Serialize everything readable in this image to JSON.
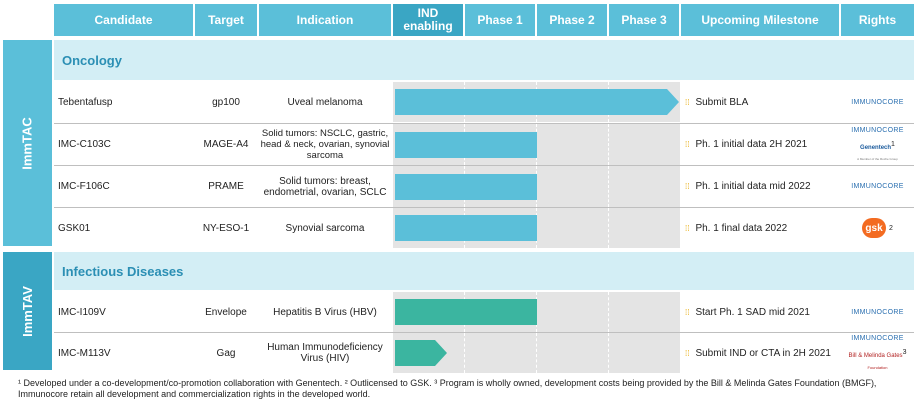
{
  "header": {
    "candidate": "Candidate",
    "target": "Target",
    "indication": "Indication",
    "ind": "IND enabling",
    "phase1": "Phase 1",
    "phase2": "Phase 2",
    "phase3": "Phase 3",
    "milestone": "Upcoming Milestone",
    "rights": "Rights"
  },
  "groups": {
    "immtac": "ImmTAC",
    "immtav": "ImmTAV"
  },
  "sections": {
    "oncology": "Oncology",
    "infectious": "Infectious Diseases"
  },
  "rows": [
    {
      "candidate": "Tebentafusp",
      "target": "gp100",
      "indication": "Uveal melanoma",
      "milestone": "Submit BLA",
      "rights": "IMMUNOCORE",
      "stage": "Phase 3"
    },
    {
      "candidate": "IMC-C103C",
      "target": "MAGE-A4",
      "indication": "Solid tumors: NSCLC, gastric, head & neck, ovarian, synovial sarcoma",
      "milestone": "Ph. 1 initial data 2H 2021",
      "rights": "IMMUNOCORE",
      "rights2": "Genentech",
      "rights2_sub": "A Member of the Roche Group",
      "note": "1",
      "stage": "Phase 1"
    },
    {
      "candidate": "IMC-F106C",
      "target": "PRAME",
      "indication": "Solid tumors: breast, endometrial, ovarian, SCLC",
      "milestone": "Ph. 1 initial data mid 2022",
      "rights": "IMMUNOCORE",
      "stage": "Phase 1"
    },
    {
      "candidate": "GSK01",
      "target": "NY-ESO-1",
      "indication": "Synovial sarcoma",
      "milestone": "Ph. 1 final data 2022",
      "rights": "gsk",
      "note": "2",
      "stage": "Phase 1"
    },
    {
      "candidate": "IMC-I109V",
      "target": "Envelope",
      "indication": "Hepatitis B Virus (HBV)",
      "milestone": "Start Ph. 1 SAD mid 2021",
      "rights": "IMMUNOCORE",
      "stage": "Phase 1"
    },
    {
      "candidate": "IMC-M113V",
      "target": "Gag",
      "indication": "Human Immunodeficiency Virus (HIV)",
      "milestone": "Submit IND or CTA in 2H 2021",
      "rights": "IMMUNOCORE",
      "rights2": "Bill & Melinda Gates",
      "rights2_sub": "Foundation",
      "note": "3",
      "stage": "IND enabling"
    }
  ],
  "footnote": "¹ Developed under a co-development/co-promotion collaboration with Genentech. ² Outlicensed to GSK. ³ Program is wholly owned, development costs being provided by the Bill & Melinda Gates Foundation (BMGF), Immunocore retain all development and commercialization rights in the developed world.",
  "colors": {
    "header": "#5bbfd9",
    "immtac_arrow": "#5bbfd9",
    "immtav_arrow": "#3bb5a0",
    "section_bg": "#d3eef5"
  }
}
